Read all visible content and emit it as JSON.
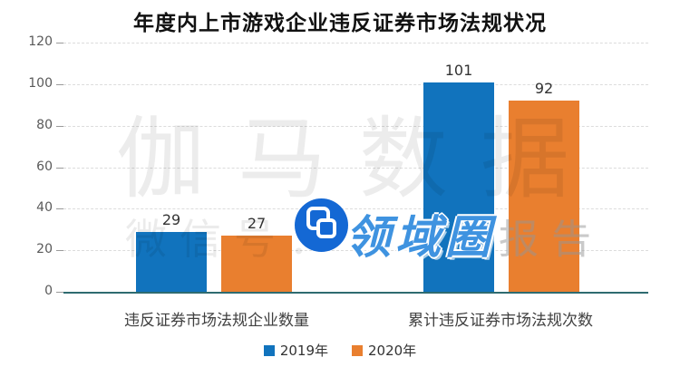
{
  "title": "年度内上市游戏企业违反证券市场法规状况",
  "chart_data": {
    "type": "bar",
    "title": "年度内上市游戏企业违反证券市场法规状况",
    "categories": [
      "违反证券市场法规企业数量",
      "累计违反证券市场法规次数"
    ],
    "series": [
      {
        "name": "2019年",
        "color": "#1173BD",
        "values": [
          29,
          101
        ]
      },
      {
        "name": "2020年",
        "color": "#E97F2F",
        "values": [
          27,
          92
        ]
      }
    ],
    "xlabel": "",
    "ylabel": "",
    "ylim": [
      0,
      120
    ],
    "ytick_step": 20,
    "grid": "horizontal-dashed",
    "legend_position": "bottom"
  },
  "watermark": {
    "brand_text": "伽马数据",
    "wechat_label": "微信号：",
    "logo_text": "领域圈",
    "report_text": "报告",
    "logo_icon": "overlapping-squares-icon"
  },
  "colors": {
    "axis_line": "#2E6B70",
    "gridline": "#DCDCDC",
    "axis_label_text": "#595959",
    "value_label_text": "#333333",
    "logo_circle": "#1468D4",
    "logo_text": "#3F93E0"
  }
}
